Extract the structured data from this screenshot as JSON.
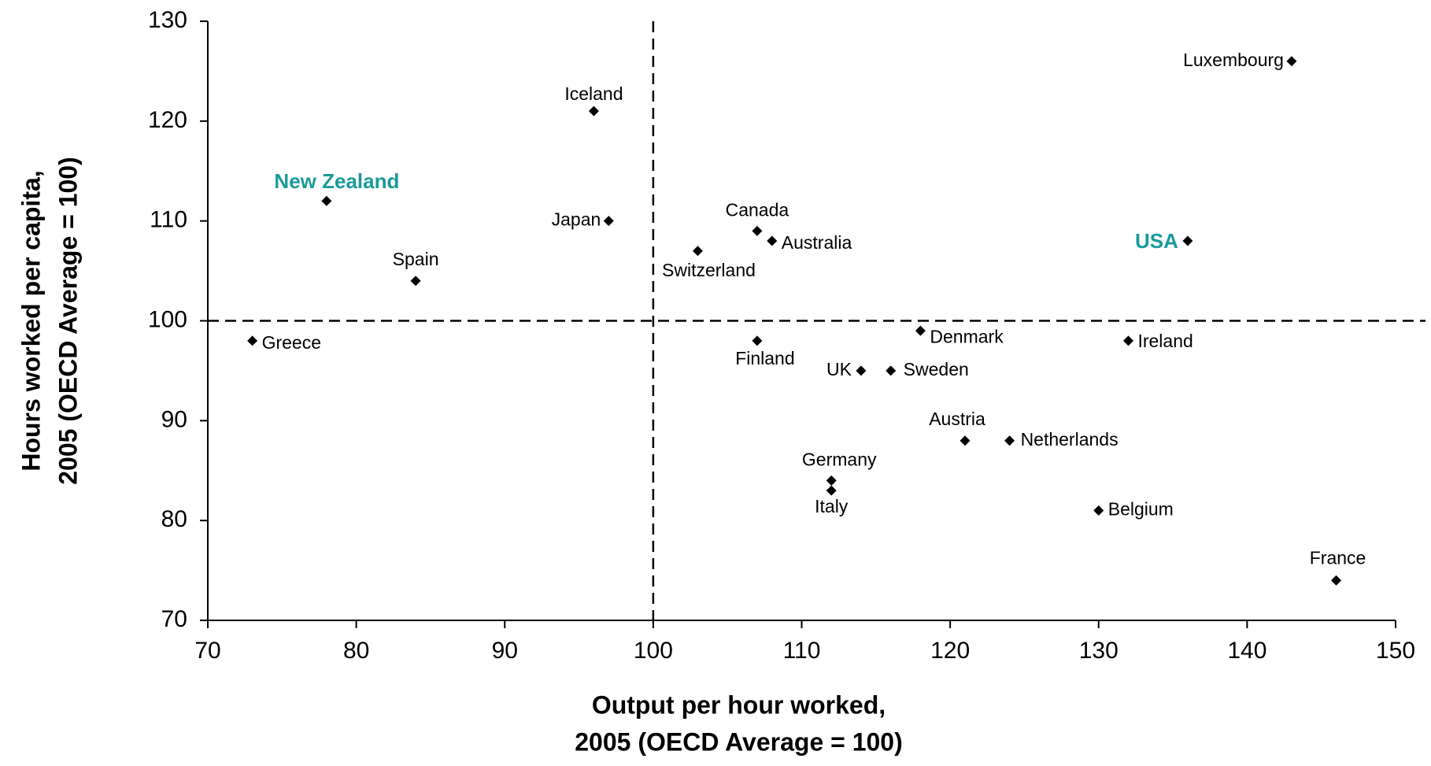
{
  "chart_data": {
    "type": "scatter",
    "x_title": [
      "Output per hour worked,",
      "2005 (OECD Average = 100)"
    ],
    "y_title": [
      "Hours worked per capita,",
      "2005 (OECD Average = 100)"
    ],
    "labels": [
      "Luxembourg",
      "Iceland",
      "New Zealand",
      "Japan",
      "Canada",
      "Australia",
      "USA",
      "Switzerland",
      "Spain",
      "Greece",
      "Denmark",
      "Finland",
      "Ireland",
      "UK",
      "Sweden",
      "Austria",
      "Netherlands",
      "Germany",
      "Italy",
      "Belgium",
      "France"
    ],
    "x": [
      143,
      96,
      78,
      97,
      107,
      108,
      136,
      103,
      84,
      73,
      118,
      107,
      132,
      114,
      116,
      121,
      124,
      112,
      112,
      130,
      146
    ],
    "y": [
      126,
      121,
      112,
      110,
      109,
      108,
      108,
      107,
      104,
      98,
      99,
      98,
      98,
      95,
      95,
      88,
      88,
      84,
      83,
      81,
      74
    ],
    "marker_color": "#000000",
    "label_colors": [
      "#000000",
      "#000000",
      "#1a9a9a",
      "#000000",
      "#000000",
      "#000000",
      "#1a9a9a",
      "#000000",
      "#000000",
      "#000000",
      "#000000",
      "#000000",
      "#000000",
      "#000000",
      "#000000",
      "#000000",
      "#000000",
      "#000000",
      "#000000",
      "#000000",
      "#000000"
    ],
    "x_reference": 100,
    "y_reference": 100,
    "xlim": [
      70,
      150
    ],
    "xticks": [
      70,
      80,
      90,
      100,
      110,
      120,
      130,
      140,
      150
    ],
    "ylim": [
      70,
      130
    ],
    "yticks": [
      70,
      80,
      90,
      100,
      110,
      120,
      130
    ]
  }
}
